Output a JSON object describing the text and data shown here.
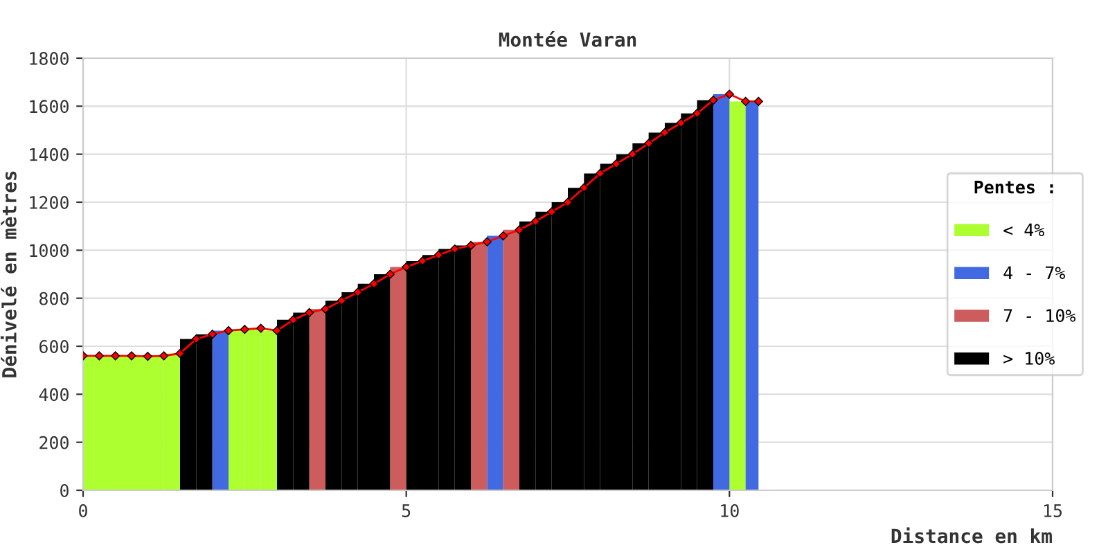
{
  "chart_data": {
    "type": "bar",
    "title": "Montée Varan",
    "xlabel": "Distance en km",
    "ylabel": "Dénivelé en mètres",
    "legend_title": "Pentes :",
    "legend": "right",
    "grid": true,
    "xlim": [
      0,
      15
    ],
    "xticks": [
      0,
      5,
      10,
      15
    ],
    "ylim": [
      0,
      1800
    ],
    "yticks": [
      0,
      200,
      400,
      600,
      800,
      1000,
      1200,
      1400,
      1600,
      1800
    ],
    "series": [
      {
        "name": "< 4%",
        "color": "#adff2f",
        "x": [
          0.625,
          1.375,
          2.375,
          2.625,
          2.875,
          10.125
        ],
        "values": [
          560,
          570,
          670,
          675,
          665,
          1620
        ]
      },
      {
        "name": "4 - 7%",
        "color": "#4169e1",
        "x": [
          2.125,
          6.375,
          9.875,
          10.35
        ],
        "values": [
          665,
          1060,
          1650,
          1620
        ]
      },
      {
        "name": "7 - 10%",
        "color": "#cd5c5c",
        "x": [
          3.625,
          4.875,
          6.125,
          6.625
        ],
        "values": [
          755,
          930,
          1035,
          1085
        ]
      },
      {
        "name": "> 10%",
        "color": "#000000",
        "x": [
          1.625,
          1.875,
          3.125,
          3.375,
          3.875,
          4.125,
          4.375,
          4.625,
          5.125,
          5.375,
          5.625,
          5.875,
          6.875,
          7.125,
          7.375,
          7.625,
          7.875,
          8.125,
          8.375,
          8.625,
          8.875,
          9.125,
          9.375,
          9.625
        ],
        "values": [
          630,
          650,
          710,
          740,
          790,
          825,
          860,
          900,
          955,
          980,
          1005,
          1020,
          1120,
          1160,
          1200,
          1260,
          1320,
          1360,
          1400,
          1445,
          1490,
          1530,
          1570,
          1625
        ]
      },
      {
        "type": "line",
        "color": "#ff0000",
        "marker": "diamond",
        "x": [
          0,
          0.25,
          0.5,
          0.75,
          1.0,
          1.25,
          1.5,
          1.75,
          2.0,
          2.25,
          2.5,
          2.75,
          3.0,
          3.25,
          3.5,
          3.75,
          4.0,
          4.25,
          4.5,
          4.75,
          5.0,
          5.25,
          5.5,
          5.75,
          6.0,
          6.25,
          6.5,
          6.75,
          7.0,
          7.25,
          7.5,
          7.75,
          8.0,
          8.25,
          8.5,
          8.75,
          9.0,
          9.25,
          9.5,
          9.75,
          10.0,
          10.25,
          10.45
        ],
        "values": [
          560,
          560,
          560,
          560,
          558,
          560,
          570,
          630,
          650,
          665,
          670,
          675,
          665,
          710,
          740,
          755,
          790,
          825,
          860,
          900,
          930,
          955,
          980,
          1005,
          1020,
          1035,
          1060,
          1085,
          1120,
          1160,
          1200,
          1260,
          1320,
          1360,
          1400,
          1445,
          1490,
          1530,
          1570,
          1625,
          1650,
          1620,
          1620
        ]
      }
    ]
  }
}
